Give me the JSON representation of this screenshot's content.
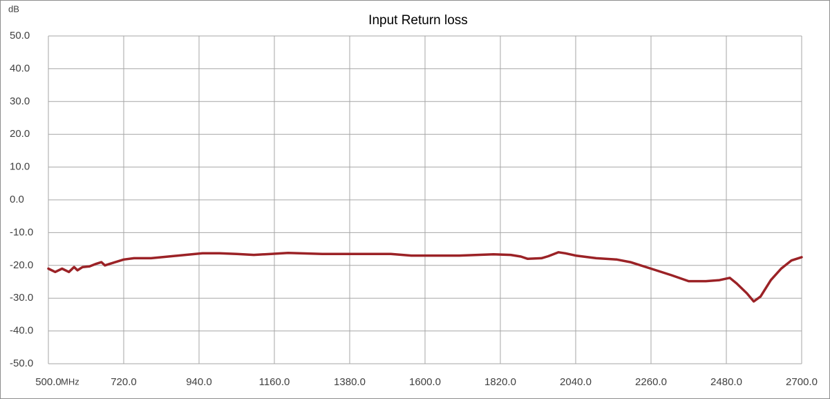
{
  "chart_data": {
    "type": "line",
    "title": "Input Return loss",
    "ylabel": "dB",
    "xlabel": "MHz",
    "x": [
      500,
      520,
      540,
      560,
      575,
      585,
      600,
      620,
      640,
      655,
      665,
      680,
      720,
      750,
      800,
      850,
      900,
      950,
      1000,
      1050,
      1100,
      1150,
      1200,
      1300,
      1400,
      1500,
      1560,
      1700,
      1800,
      1850,
      1880,
      1900,
      1940,
      1960,
      1990,
      2010,
      2040,
      2100,
      2160,
      2200,
      2260,
      2320,
      2370,
      2420,
      2460,
      2490,
      2510,
      2540,
      2560,
      2580,
      2610,
      2640,
      2670,
      2700
    ],
    "values": [
      -21,
      -22,
      -21,
      -22,
      -20.5,
      -21.5,
      -20.5,
      -20.3,
      -19.5,
      -19,
      -20,
      -19.5,
      -18.2,
      -17.8,
      -17.8,
      -17.3,
      -16.8,
      -16.3,
      -16.3,
      -16.5,
      -16.8,
      -16.5,
      -16.2,
      -16.5,
      -16.5,
      -16.5,
      -17,
      -17,
      -16.6,
      -16.8,
      -17.3,
      -18,
      -17.8,
      -17.2,
      -16,
      -16.3,
      -17,
      -17.8,
      -18.2,
      -19,
      -21,
      -23,
      -24.8,
      -24.8,
      -24.5,
      -23.8,
      -25.5,
      -28.5,
      -31,
      -29.5,
      -24.5,
      -21,
      -18.5,
      -17.5
    ],
    "color": "#9b2226",
    "xlim": [
      500,
      2700
    ],
    "xticks": [
      {
        "value": 500,
        "label": "500.0"
      },
      {
        "value": 720,
        "label": "720.0"
      },
      {
        "value": 940,
        "label": "940.0"
      },
      {
        "value": 1160,
        "label": "1160.0"
      },
      {
        "value": 1380,
        "label": "1380.0"
      },
      {
        "value": 1600,
        "label": "1600.0"
      },
      {
        "value": 1820,
        "label": "1820.0"
      },
      {
        "value": 2040,
        "label": "2040.0"
      },
      {
        "value": 2260,
        "label": "2260.0"
      },
      {
        "value": 2480,
        "label": "2480.0"
      },
      {
        "value": 2700,
        "label": "2700.0"
      }
    ],
    "ylim": [
      -50,
      50
    ],
    "yticks": [
      {
        "value": -50,
        "label": "-50.0"
      },
      {
        "value": -40,
        "label": "-40.0"
      },
      {
        "value": -30,
        "label": "-30.0"
      },
      {
        "value": -20,
        "label": "-20.0"
      },
      {
        "value": -10,
        "label": "-10.0"
      },
      {
        "value": 0,
        "label": "0.0"
      },
      {
        "value": 10,
        "label": "10.0"
      },
      {
        "value": 20,
        "label": "20.0"
      },
      {
        "value": 30,
        "label": "30.0"
      },
      {
        "value": 40,
        "label": "40.0"
      },
      {
        "value": 50,
        "label": "50.0"
      }
    ],
    "grid": true
  }
}
